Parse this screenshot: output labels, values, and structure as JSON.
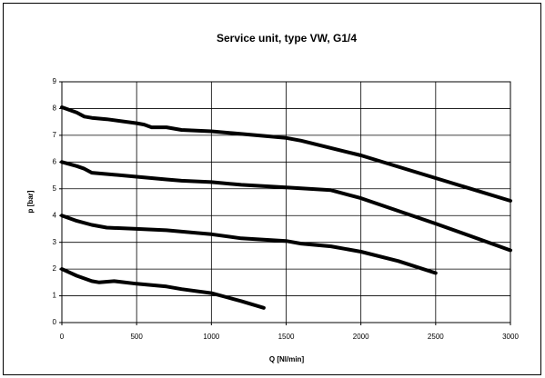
{
  "chart_data": {
    "type": "line",
    "title": "Service unit, type VW, G1/4",
    "x_label": "Q [Nl/min]",
    "y_label": "p [bar]",
    "xlim": [
      0,
      3000
    ],
    "xticks": [
      0,
      500,
      1000,
      1500,
      2000,
      2500,
      3000
    ],
    "ylim": [
      0,
      9
    ],
    "yticks": [
      0,
      1,
      2,
      3,
      4,
      5,
      6,
      7,
      8,
      9
    ],
    "grid": true,
    "series": [
      {
        "color": "#000000",
        "x": [
          0,
          100,
          150,
          200,
          300,
          500,
          550,
          600,
          700,
          800,
          1000,
          1200,
          1500,
          1600,
          2000,
          2500,
          3000
        ],
        "values": [
          8.05,
          7.85,
          7.7,
          7.65,
          7.6,
          7.45,
          7.4,
          7.3,
          7.3,
          7.2,
          7.15,
          7.05,
          6.9,
          6.8,
          6.25,
          5.4,
          4.55
        ]
      },
      {
        "color": "#000000",
        "x": [
          0,
          100,
          150,
          200,
          500,
          700,
          800,
          1000,
          1200,
          1500,
          1800,
          2000,
          2500,
          3000
        ],
        "values": [
          6.0,
          5.85,
          5.75,
          5.6,
          5.45,
          5.35,
          5.3,
          5.25,
          5.15,
          5.05,
          4.95,
          4.65,
          3.7,
          2.7
        ]
      },
      {
        "color": "#000000",
        "x": [
          0,
          100,
          200,
          300,
          500,
          700,
          1000,
          1200,
          1500,
          1600,
          1800,
          2000,
          2250,
          2500
        ],
        "values": [
          4.0,
          3.8,
          3.65,
          3.55,
          3.5,
          3.45,
          3.3,
          3.15,
          3.05,
          2.95,
          2.85,
          2.65,
          2.3,
          1.85
        ]
      },
      {
        "color": "#000000",
        "x": [
          0,
          100,
          200,
          250,
          350,
          500,
          700,
          800,
          1000,
          1100,
          1200,
          1350
        ],
        "values": [
          2.0,
          1.75,
          1.55,
          1.5,
          1.55,
          1.45,
          1.35,
          1.25,
          1.1,
          0.95,
          0.8,
          0.55
        ]
      }
    ]
  }
}
